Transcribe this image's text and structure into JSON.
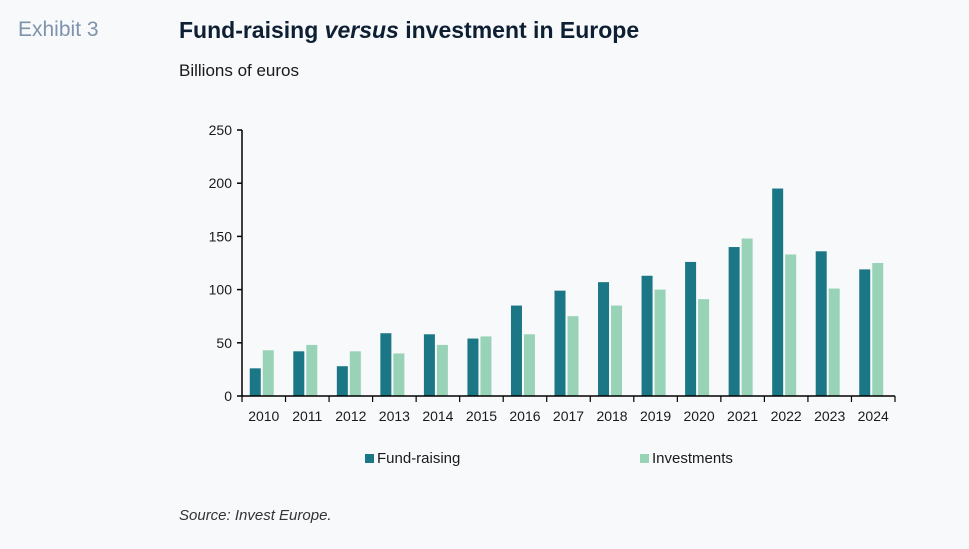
{
  "header": {
    "exhibit": "Exhibit 3",
    "title_pre": "Fund-raising ",
    "title_em": "versus",
    "title_post": " investment in Europe",
    "subtitle": "Billions of euros"
  },
  "source": "Source: Invest Europe.",
  "colors": {
    "fund_raising": "#1b7785",
    "investments": "#98d3b7"
  },
  "chart_data": {
    "type": "bar",
    "title": "Fund-raising versus investment in Europe",
    "subtitle": "Billions of euros",
    "xlabel": "",
    "ylabel": "Billions of euros",
    "ylim": [
      0,
      250
    ],
    "yticks": [
      0,
      50,
      100,
      150,
      200,
      250
    ],
    "grid": false,
    "legend_position": "bottom",
    "categories": [
      "2010",
      "2011",
      "2012",
      "2013",
      "2014",
      "2015",
      "2016",
      "2017",
      "2018",
      "2019",
      "2020",
      "2021",
      "2022",
      "2023",
      "2024"
    ],
    "series": [
      {
        "name": "Fund-raising",
        "values": [
          26,
          42,
          28,
          59,
          58,
          54,
          85,
          99,
          107,
          113,
          126,
          140,
          195,
          136,
          119
        ]
      },
      {
        "name": "Investments",
        "values": [
          43,
          48,
          42,
          40,
          48,
          56,
          58,
          75,
          85,
          100,
          91,
          148,
          133,
          101,
          125
        ]
      }
    ]
  }
}
